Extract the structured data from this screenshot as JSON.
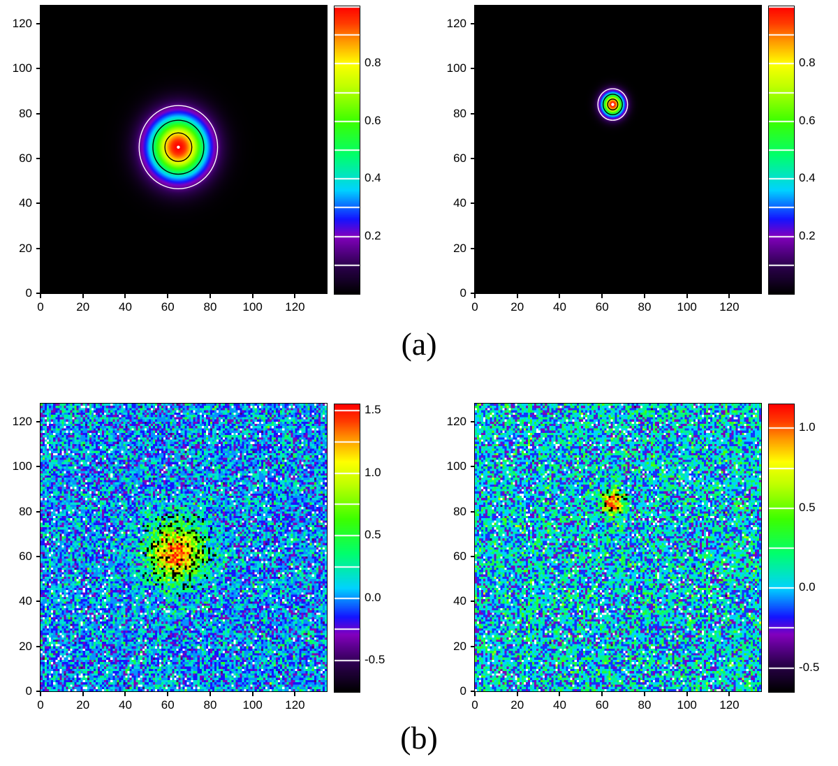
{
  "figure": {
    "caption_a": "(a)",
    "caption_b": "(b)",
    "background": "#ffffff",
    "colormap_hint": "idl-rainbow-black-purple-blue-cyan-green-yellow-orange-red"
  },
  "chart_data": [
    {
      "type": "heatmap",
      "panel": "top-left",
      "x_range": [
        0,
        135
      ],
      "y_range": [
        0,
        128
      ],
      "x_ticks": [
        0,
        20,
        40,
        60,
        80,
        100,
        120
      ],
      "y_ticks": [
        0,
        20,
        40,
        60,
        80,
        100,
        120
      ],
      "gaussian": {
        "amplitude": 1.0,
        "center_x": 65,
        "center_y": 65,
        "sigma": 9.5
      },
      "noise_sigma": 0,
      "seed": 11,
      "colorbar": {
        "min": 0.0,
        "max": 1.0,
        "ticks": [
          {
            "v": 0.8,
            "label": "0.8"
          },
          {
            "v": 0.6,
            "label": "0.6"
          },
          {
            "v": 0.4,
            "label": "0.4"
          },
          {
            "v": 0.2,
            "label": "0.2"
          }
        ],
        "lines": [
          0.1,
          0.2,
          0.3,
          0.4,
          0.5,
          0.6,
          0.7,
          0.8,
          0.9,
          1.0
        ]
      },
      "contours": [
        {
          "level": 0.15,
          "color": "#ffffff"
        },
        {
          "level": 0.45,
          "color": "#000000"
        },
        {
          "level": 0.8,
          "color": "#000000"
        }
      ],
      "center_dot": true
    },
    {
      "type": "heatmap",
      "panel": "top-right",
      "x_range": [
        0,
        135
      ],
      "y_range": [
        0,
        128
      ],
      "x_ticks": [
        0,
        20,
        40,
        60,
        80,
        100,
        120
      ],
      "y_ticks": [
        0,
        20,
        40,
        60,
        80,
        100,
        120
      ],
      "gaussian": {
        "amplitude": 1.0,
        "center_x": 65,
        "center_y": 84,
        "sigma": 3.6
      },
      "noise_sigma": 0,
      "seed": 12,
      "colorbar": {
        "min": 0.0,
        "max": 1.0,
        "ticks": [
          {
            "v": 0.8,
            "label": "0.8"
          },
          {
            "v": 0.6,
            "label": "0.6"
          },
          {
            "v": 0.4,
            "label": "0.4"
          },
          {
            "v": 0.2,
            "label": "0.2"
          }
        ],
        "lines": [
          0.1,
          0.2,
          0.3,
          0.4,
          0.5,
          0.6,
          0.7,
          0.8,
          0.9,
          1.0
        ]
      },
      "contours": [
        {
          "level": 0.15,
          "color": "#ffffff"
        },
        {
          "level": 0.45,
          "color": "#000000"
        },
        {
          "level": 0.8,
          "color": "#000000"
        }
      ],
      "center_dot": true
    },
    {
      "type": "heatmap",
      "panel": "bottom-left",
      "x_range": [
        0,
        135
      ],
      "y_range": [
        0,
        128
      ],
      "x_ticks": [
        0,
        20,
        40,
        60,
        80,
        100,
        120
      ],
      "y_ticks": [
        0,
        20,
        40,
        60,
        80,
        100,
        120
      ],
      "gaussian": {
        "amplitude": 1.35,
        "center_x": 64,
        "center_y": 62,
        "sigma": 9.0
      },
      "noise_sigma": 0.22,
      "quant_step": 0.15,
      "seed": 7,
      "colorbar": {
        "min": -0.75,
        "max": 1.55,
        "ticks": [
          {
            "v": 1.5,
            "label": "1.5"
          },
          {
            "v": 1.0,
            "label": "1.0"
          },
          {
            "v": 0.5,
            "label": "0.5"
          },
          {
            "v": 0.0,
            "label": "0.0"
          },
          {
            "v": -0.5,
            "label": "-0.5"
          }
        ],
        "lines": [
          -0.5,
          -0.25,
          0.0,
          0.25,
          0.5,
          0.75,
          1.0,
          1.25,
          1.5
        ]
      },
      "speckle": {
        "white_below": -0.4
      },
      "contour_bands": [
        {
          "level": 0.5,
          "tol": 0.05,
          "min_gauss": 0.12
        },
        {
          "level": 0.95,
          "tol": 0.05,
          "min_gauss": 0.35
        }
      ],
      "center_dot": false
    },
    {
      "type": "heatmap",
      "panel": "bottom-right",
      "x_range": [
        0,
        135
      ],
      "y_range": [
        0,
        128
      ],
      "x_ticks": [
        0,
        20,
        40,
        60,
        80,
        100,
        120
      ],
      "y_ticks": [
        0,
        20,
        40,
        60,
        80,
        100,
        120
      ],
      "gaussian": {
        "amplitude": 1.05,
        "center_x": 65,
        "center_y": 84,
        "sigma": 3.8
      },
      "noise_sigma": 0.22,
      "quant_step": 0.15,
      "seed": 13,
      "colorbar": {
        "min": -0.65,
        "max": 1.15,
        "ticks": [
          {
            "v": 1.0,
            "label": "1.0"
          },
          {
            "v": 0.5,
            "label": "0.5"
          },
          {
            "v": 0.0,
            "label": "0.0"
          },
          {
            "v": -0.5,
            "label": "-0.5"
          }
        ],
        "lines": [
          -0.5,
          -0.25,
          0.0,
          0.25,
          0.5,
          0.75,
          1.0
        ]
      },
      "speckle": {
        "white_below": -0.38
      },
      "contour_bands": [
        {
          "level": 0.5,
          "tol": 0.05,
          "min_gauss": 0.15
        }
      ],
      "center_dot": false
    }
  ]
}
